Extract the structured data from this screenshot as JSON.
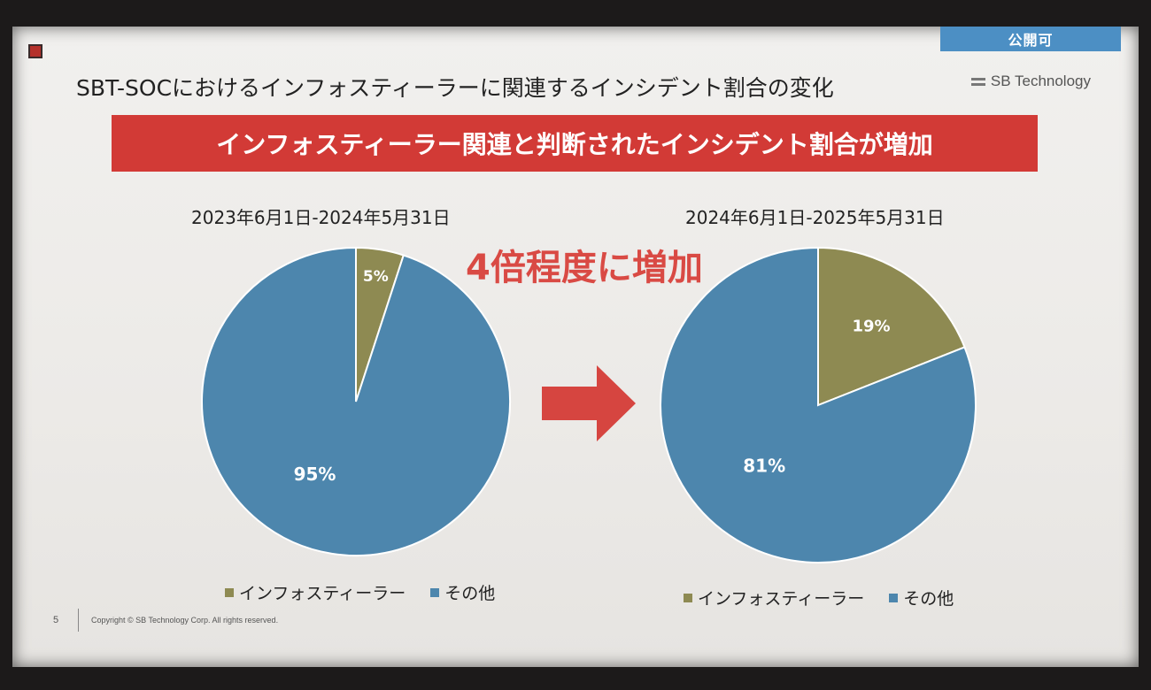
{
  "slide": {
    "badge": "公開可",
    "title": "SBT-SOCにおけるインフォスティーラーに関連するインシデント割合の変化",
    "logo_text": "SB Technology",
    "banner": "インフォスティーラー関連と判断されたインシデント割合が増加",
    "headline": "4倍程度に増加",
    "page_number": "5",
    "copyright": "Copyright © SB Technology Corp. All rights reserved."
  },
  "colors": {
    "infostealer": "#8e8a52",
    "other": "#4d86ad",
    "banner": "#d23a36",
    "headline": "#d94a44"
  },
  "chart_data": [
    {
      "type": "pie",
      "title": "2023年6月1日-2024年5月31日",
      "categories": [
        "インフォスティーラー",
        "その他"
      ],
      "values": [
        5,
        95
      ],
      "labels": [
        "5%",
        "95%"
      ],
      "legend": [
        "インフォスティーラー",
        "その他"
      ],
      "legend_placement": "bottom"
    },
    {
      "type": "pie",
      "title": "2024年6月1日-2025年5月31日",
      "categories": [
        "インフォスティーラー",
        "その他"
      ],
      "values": [
        19,
        81
      ],
      "labels": [
        "19%",
        "81%"
      ],
      "legend": [
        "インフォスティーラー",
        "その他"
      ],
      "legend_placement": "bottom"
    }
  ]
}
